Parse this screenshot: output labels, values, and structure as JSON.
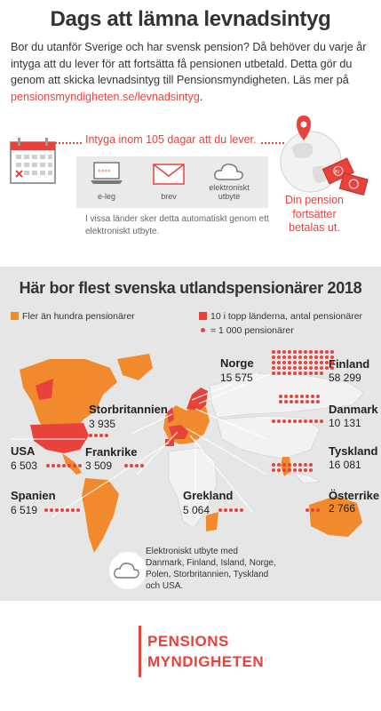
{
  "header": {
    "title": "Dags att lämna levnadsintyg",
    "intro_text": "Bor du utanför Sverige och har svensk pension? Då behöver du varje år intyga att du lever för att fortsätta få pensionen utbetald. Detta gör du genom att skicka levnadsintyg till Pensionsmyndigheten. Läs mer på ",
    "intro_link": "pensionsmyndigheten.se/levnadsintyg",
    "intro_end": "."
  },
  "process": {
    "deadline": "Intyga inom 105 dagar att du lever.",
    "options": [
      {
        "label": "e-leg",
        "icon": "laptop-icon"
      },
      {
        "label": "brev",
        "icon": "envelope-icon"
      },
      {
        "label": "elektroniskt utbyte",
        "icon": "cloud-icon"
      }
    ],
    "note": "I vissa länder sker detta automatiskt genom ett elektroniskt utbyte.",
    "result": "Din pension fortsätter betalas ut.",
    "money_label": "Kr"
  },
  "map": {
    "title": "Här bor flest svenska utlandspensionärer 2018",
    "legend": {
      "over_hundred": "Fler än hundra pensionärer",
      "top_ten": "10 i topp länderna, antal pensionärer",
      "dot_scale": "= 1 000 pensionärer"
    },
    "countries": [
      {
        "name": "Norge",
        "value": "15 575"
      },
      {
        "name": "Finland",
        "value": "58 299"
      },
      {
        "name": "Storbritannien",
        "value": "3 935"
      },
      {
        "name": "Danmark",
        "value": "10 131"
      },
      {
        "name": "USA",
        "value": "6 503"
      },
      {
        "name": "Frankrike",
        "value": "3 509"
      },
      {
        "name": "Tyskland",
        "value": "16 081"
      },
      {
        "name": "Spanien",
        "value": "6 519"
      },
      {
        "name": "Grekland",
        "value": "5 064"
      },
      {
        "name": "Österrike",
        "value": "2 766"
      }
    ],
    "electronic_note": "Elektroniskt utbyte med Danmark, Finland, Island, Norge, Polen, Storbritannien, Tyskland och USA."
  },
  "colors": {
    "accent": "#e8423a",
    "orange": "#f08a2c",
    "gray_bg": "#e6e6e6"
  },
  "logo": {
    "line1": "PENSIONS",
    "line2": "MYNDIGHETEN"
  }
}
